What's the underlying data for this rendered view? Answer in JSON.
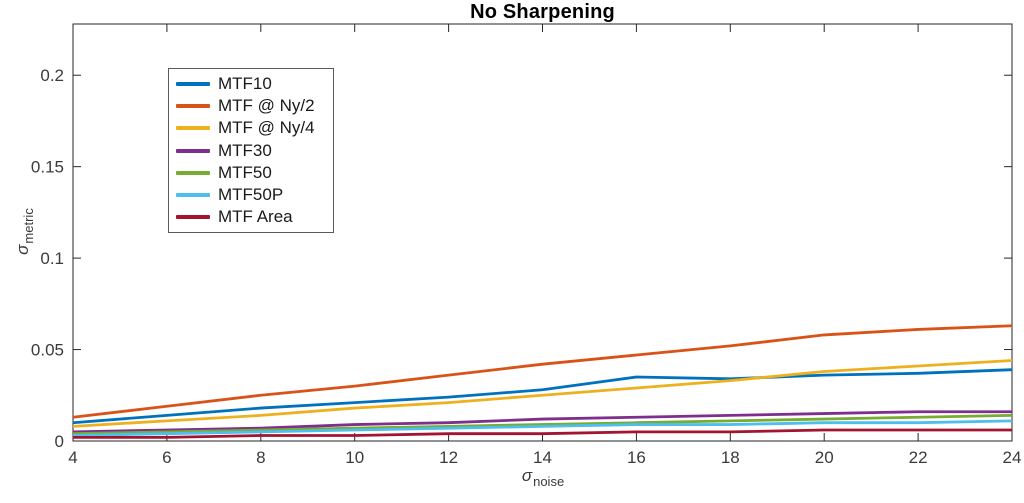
{
  "chart_data": {
    "type": "line",
    "title": "No Sharpening",
    "xlabel": {
      "symbol": "σ",
      "subscript": "noise"
    },
    "ylabel": {
      "symbol": "σ",
      "subscript": "metric"
    },
    "x": [
      4,
      6,
      8,
      10,
      12,
      14,
      16,
      18,
      20,
      22,
      24
    ],
    "xlim": [
      4,
      24
    ],
    "ylim": [
      0,
      0.228
    ],
    "xticks": {
      "values": [
        4,
        6,
        8,
        10,
        12,
        14,
        16,
        18,
        20,
        22,
        24
      ],
      "labels": [
        "4",
        "6",
        "8",
        "10",
        "12",
        "14",
        "16",
        "18",
        "20",
        "22",
        "24"
      ]
    },
    "yticks": {
      "values": [
        0,
        0.05,
        0.1,
        0.15,
        0.2
      ],
      "labels": [
        "0",
        "0.05",
        "0.1",
        "0.15",
        "0.2"
      ]
    },
    "grid": false,
    "axis_color": "#262626",
    "legend_position": "upper-left-inside",
    "series": [
      {
        "name": "MTF10",
        "color": "#0072BD",
        "values": [
          0.01,
          0.014,
          0.018,
          0.021,
          0.024,
          0.028,
          0.035,
          0.034,
          0.036,
          0.037,
          0.039
        ]
      },
      {
        "name": "MTF @ Ny/2",
        "color": "#D95319",
        "values": [
          0.013,
          0.019,
          0.025,
          0.03,
          0.036,
          0.042,
          0.047,
          0.052,
          0.058,
          0.061,
          0.063
        ]
      },
      {
        "name": "MTF @ Ny/4",
        "color": "#EDB120",
        "values": [
          0.008,
          0.011,
          0.014,
          0.018,
          0.021,
          0.025,
          0.029,
          0.033,
          0.038,
          0.041,
          0.044
        ]
      },
      {
        "name": "MTF30",
        "color": "#7E2F8E",
        "values": [
          0.005,
          0.006,
          0.007,
          0.009,
          0.01,
          0.012,
          0.013,
          0.014,
          0.015,
          0.016,
          0.016
        ]
      },
      {
        "name": "MTF50",
        "color": "#77AC30",
        "values": [
          0.004,
          0.005,
          0.006,
          0.007,
          0.008,
          0.009,
          0.01,
          0.011,
          0.012,
          0.013,
          0.014
        ]
      },
      {
        "name": "MTF50P",
        "color": "#4DBEEE",
        "values": [
          0.003,
          0.004,
          0.005,
          0.006,
          0.007,
          0.008,
          0.009,
          0.009,
          0.01,
          0.01,
          0.011
        ]
      },
      {
        "name": "MTF Area",
        "color": "#A2142F",
        "values": [
          0.002,
          0.002,
          0.003,
          0.003,
          0.004,
          0.004,
          0.005,
          0.005,
          0.006,
          0.006,
          0.006
        ]
      }
    ]
  }
}
